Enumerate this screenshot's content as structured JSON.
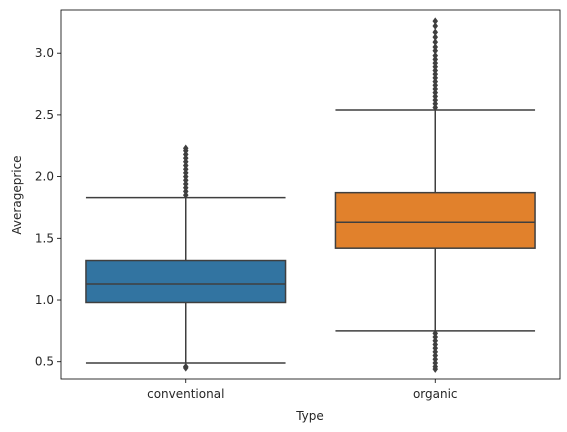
{
  "chart_data": {
    "type": "box",
    "xlabel": "Type",
    "ylabel": "Averageprice",
    "ylim": [
      0.36,
      3.35
    ],
    "yticks": [
      0.5,
      1.0,
      1.5,
      2.0,
      2.5,
      3.0
    ],
    "ytick_labels": [
      "0.5",
      "1.0",
      "1.5",
      "2.0",
      "2.5",
      "3.0"
    ],
    "categories": [
      "conventional",
      "organic"
    ],
    "grid": false,
    "legend": "none",
    "series": [
      {
        "category": "conventional",
        "color": "#3274a1",
        "q1": 0.98,
        "median": 1.13,
        "q3": 1.32,
        "whisker_low": 0.49,
        "whisker_high": 1.83,
        "outliers_low": [
          0.46,
          0.45
        ],
        "outliers_high": [
          1.85,
          1.88,
          1.91,
          1.94,
          1.97,
          2.0,
          2.03,
          2.06,
          2.09,
          2.12,
          2.15,
          2.18,
          2.21,
          2.23
        ]
      },
      {
        "category": "organic",
        "color": "#e1812c",
        "q1": 1.42,
        "median": 1.63,
        "q3": 1.87,
        "whisker_low": 0.75,
        "whisker_high": 2.54,
        "outliers_low": [
          0.73,
          0.7,
          0.67,
          0.64,
          0.61,
          0.58,
          0.55,
          0.52,
          0.49,
          0.46,
          0.44
        ],
        "outliers_high": [
          2.56,
          2.59,
          2.62,
          2.65,
          2.68,
          2.71,
          2.74,
          2.77,
          2.8,
          2.83,
          2.86,
          2.89,
          2.92,
          2.95,
          2.98,
          3.02,
          3.05,
          3.09,
          3.13,
          3.17,
          3.22,
          3.26
        ]
      }
    ]
  }
}
